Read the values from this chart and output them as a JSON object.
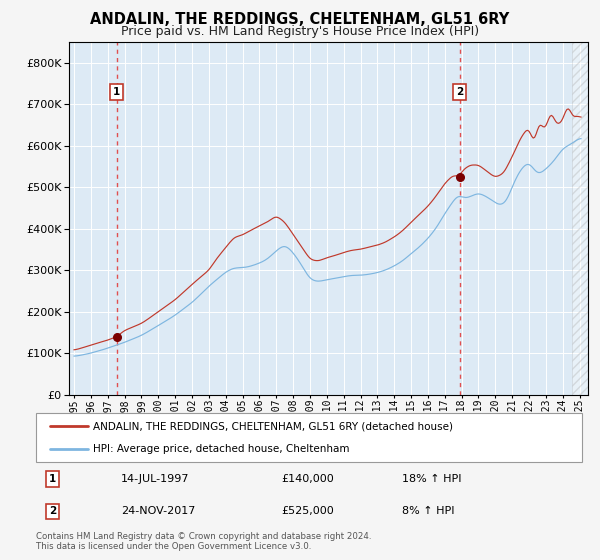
{
  "title": "ANDALIN, THE REDDINGS, CHELTENHAM, GL51 6RY",
  "subtitle": "Price paid vs. HM Land Registry's House Price Index (HPI)",
  "xlim": [
    1994.7,
    2025.5
  ],
  "ylim": [
    0,
    850000
  ],
  "yticks": [
    0,
    100000,
    200000,
    300000,
    400000,
    500000,
    600000,
    700000,
    800000
  ],
  "sale1_date": 1997.54,
  "sale1_price": 140000,
  "sale1_text": "14-JUL-1997",
  "sale1_amount": "£140,000",
  "sale1_hpi": "18% ↑ HPI",
  "sale2_date": 2017.9,
  "sale2_price": 525000,
  "sale2_text": "24-NOV-2017",
  "sale2_amount": "£525,000",
  "sale2_hpi": "8% ↑ HPI",
  "hpi_line_color": "#7eb6e0",
  "price_line_color": "#c0392b",
  "sale_marker_color": "#7a0000",
  "vline_color": "#e05050",
  "plot_bg": "#ddeaf5",
  "grid_color": "#ffffff",
  "legend1": "ANDALIN, THE REDDINGS, CHELTENHAM, GL51 6RY (detached house)",
  "legend2": "HPI: Average price, detached house, Cheltenham",
  "footer1": "Contains HM Land Registry data © Crown copyright and database right 2024.",
  "footer2": "This data is licensed under the Open Government Licence v3.0.",
  "hatched_region_start": 2024.58,
  "title_fontsize": 10.5,
  "subtitle_fontsize": 9,
  "fig_bg": "#f5f5f5"
}
